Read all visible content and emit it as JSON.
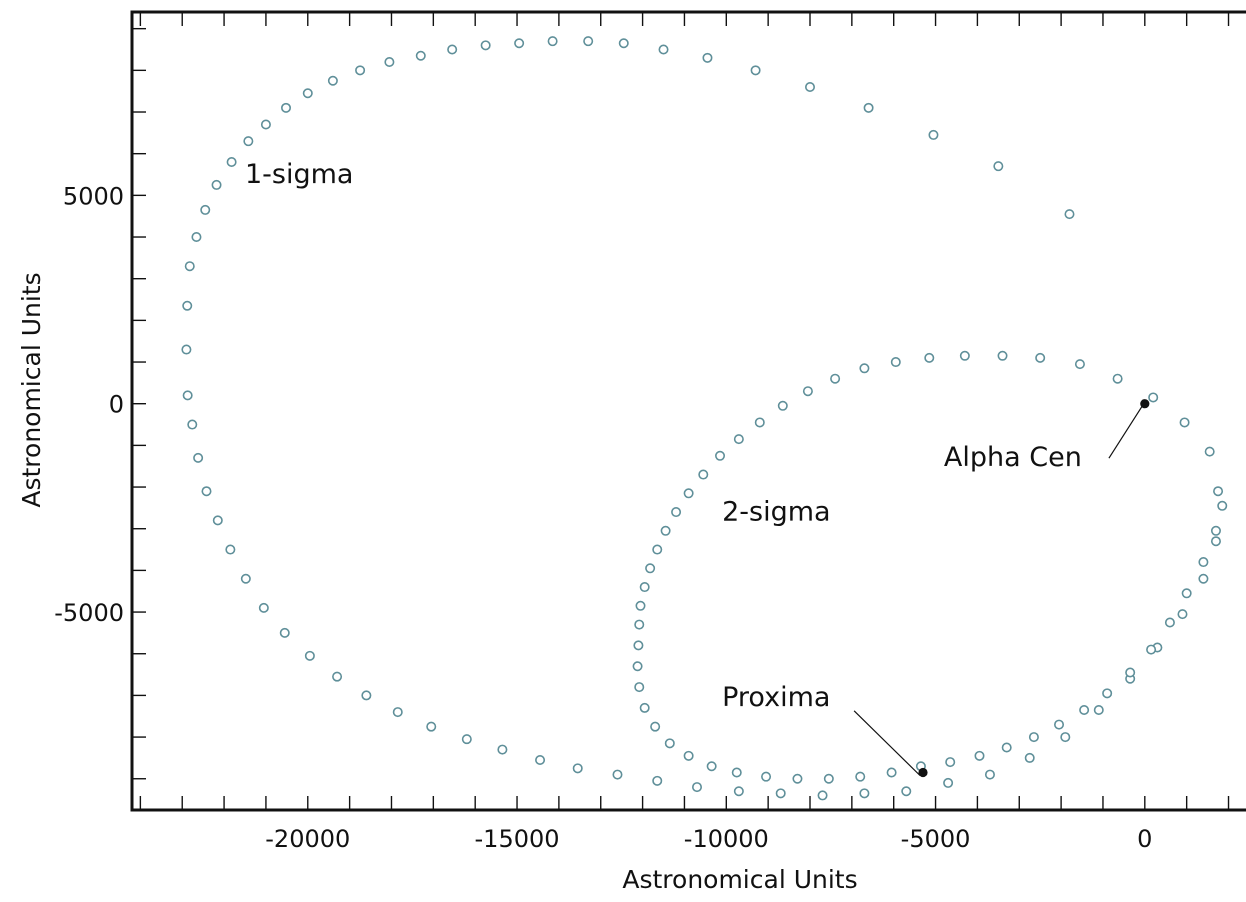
{
  "chart_data": {
    "type": "scatter",
    "xlabel": "Astronomical Units",
    "ylabel": "Astronomical Units",
    "xlim": [
      -24200,
      2800
    ],
    "ylim": [
      -9750,
      9400
    ],
    "x_ticks": [
      -20000,
      -15000,
      -10000,
      -5000,
      0
    ],
    "x_tick_labels": [
      "-20000",
      "-15000",
      "-10000",
      "-5000",
      "0"
    ],
    "y_ticks": [
      -5000,
      0,
      5000
    ],
    "y_tick_labels": [
      "-5000",
      "0",
      "5000"
    ],
    "minor_tick_step": 1000,
    "grid": false,
    "legend": "none",
    "colors": {
      "marker_edge": "#5f8f99",
      "star": "#111111",
      "frame": "#111111"
    },
    "series": [
      {
        "label": "1-sigma",
        "marker": "open-circle",
        "label_position": {
          "x": -21500,
          "y": 5300
        },
        "points": [
          [
            -22900,
            1300
          ],
          [
            -22880,
            2350
          ],
          [
            -22870,
            200
          ],
          [
            -22820,
            3300
          ],
          [
            -22760,
            -500
          ],
          [
            -22660,
            4000
          ],
          [
            -22620,
            -1300
          ],
          [
            -22450,
            4650
          ],
          [
            -22420,
            -2100
          ],
          [
            -22180,
            5250
          ],
          [
            -22150,
            -2800
          ],
          [
            -21850,
            -3500
          ],
          [
            -21820,
            5800
          ],
          [
            -21420,
            6300
          ],
          [
            -21480,
            -4200
          ],
          [
            -21000,
            6700
          ],
          [
            -21050,
            -4900
          ],
          [
            -20520,
            7100
          ],
          [
            -20550,
            -5500
          ],
          [
            -20000,
            7450
          ],
          [
            -19950,
            -6050
          ],
          [
            -19400,
            7750
          ],
          [
            -19300,
            -6550
          ],
          [
            -18750,
            8000
          ],
          [
            -18600,
            -7000
          ],
          [
            -18050,
            8200
          ],
          [
            -17850,
            -7400
          ],
          [
            -17300,
            8350
          ],
          [
            -17050,
            -7750
          ],
          [
            -16550,
            8500
          ],
          [
            -16200,
            -8050
          ],
          [
            -15750,
            8600
          ],
          [
            -15350,
            -8300
          ],
          [
            -14950,
            8650
          ],
          [
            -14450,
            -8550
          ],
          [
            -14150,
            8700
          ],
          [
            -13550,
            -8750
          ],
          [
            -13300,
            8700
          ],
          [
            -12600,
            -8900
          ],
          [
            -12450,
            8650
          ],
          [
            -11650,
            -9050
          ],
          [
            -11500,
            8500
          ],
          [
            -10700,
            -9200
          ],
          [
            -10450,
            8300
          ],
          [
            -9700,
            -9300
          ],
          [
            -9300,
            8000
          ],
          [
            -8700,
            -9350
          ],
          [
            -8000,
            7600
          ],
          [
            -7700,
            -9400
          ],
          [
            -6600,
            7100
          ],
          [
            -6700,
            -9350
          ],
          [
            -5050,
            6450
          ],
          [
            -5700,
            -9300
          ],
          [
            -3500,
            5700
          ],
          [
            -4700,
            -9100
          ],
          [
            -1800,
            4550
          ],
          [
            -3700,
            -8900
          ],
          [
            -2750,
            -8500
          ],
          [
            -1900,
            -8000
          ],
          [
            -1100,
            -7350
          ],
          [
            -350,
            -6600
          ],
          [
            300,
            -5850
          ],
          [
            900,
            -5050
          ],
          [
            1400,
            -4200
          ],
          [
            1700,
            -3300
          ],
          [
            1850,
            -2450
          ]
        ]
      },
      {
        "label": "2-sigma",
        "marker": "open-circle",
        "label_position": {
          "x": -10100,
          "y": -2800
        },
        "points": [
          [
            -12100,
            -5800
          ],
          [
            -12080,
            -5300
          ],
          [
            -12050,
            -4850
          ],
          [
            -11950,
            -4400
          ],
          [
            -11820,
            -3950
          ],
          [
            -11650,
            -3500
          ],
          [
            -11450,
            -3050
          ],
          [
            -11200,
            -2600
          ],
          [
            -10900,
            -2150
          ],
          [
            -10550,
            -1700
          ],
          [
            -10150,
            -1250
          ],
          [
            -9700,
            -850
          ],
          [
            -9200,
            -450
          ],
          [
            -8650,
            -50
          ],
          [
            -8050,
            300
          ],
          [
            -7400,
            600
          ],
          [
            -6700,
            850
          ],
          [
            -5950,
            1000
          ],
          [
            -5150,
            1100
          ],
          [
            -4300,
            1150
          ],
          [
            -3400,
            1150
          ],
          [
            -2500,
            1100
          ],
          [
            -1550,
            950
          ],
          [
            -650,
            600
          ],
          [
            200,
            150
          ],
          [
            950,
            -450
          ],
          [
            1550,
            -1150
          ],
          [
            1750,
            -2100
          ],
          [
            1700,
            -3050
          ],
          [
            1400,
            -3800
          ],
          [
            1000,
            -4550
          ],
          [
            600,
            -5250
          ],
          [
            150,
            -5900
          ],
          [
            -350,
            -6450
          ],
          [
            -900,
            -6950
          ],
          [
            -1450,
            -7350
          ],
          [
            -2050,
            -7700
          ],
          [
            -2650,
            -8000
          ],
          [
            -3300,
            -8250
          ],
          [
            -3950,
            -8450
          ],
          [
            -4650,
            -8600
          ],
          [
            -5350,
            -8700
          ],
          [
            -6050,
            -8850
          ],
          [
            -6800,
            -8950
          ],
          [
            -7550,
            -9000
          ],
          [
            -8300,
            -9000
          ],
          [
            -9050,
            -8950
          ],
          [
            -9750,
            -8850
          ],
          [
            -10350,
            -8700
          ],
          [
            -10900,
            -8450
          ],
          [
            -11350,
            -8150
          ],
          [
            -11700,
            -7750
          ],
          [
            -11950,
            -7300
          ],
          [
            -12080,
            -6800
          ],
          [
            -12120,
            -6300
          ]
        ]
      }
    ],
    "annotations": [
      {
        "label": "Alpha Cen",
        "x": 0,
        "y": 0,
        "text_x": -4800,
        "text_y": -1500
      },
      {
        "label": "Proxima",
        "x": -5300,
        "y": -8850,
        "text_x": -10100,
        "text_y": -7250
      }
    ]
  }
}
